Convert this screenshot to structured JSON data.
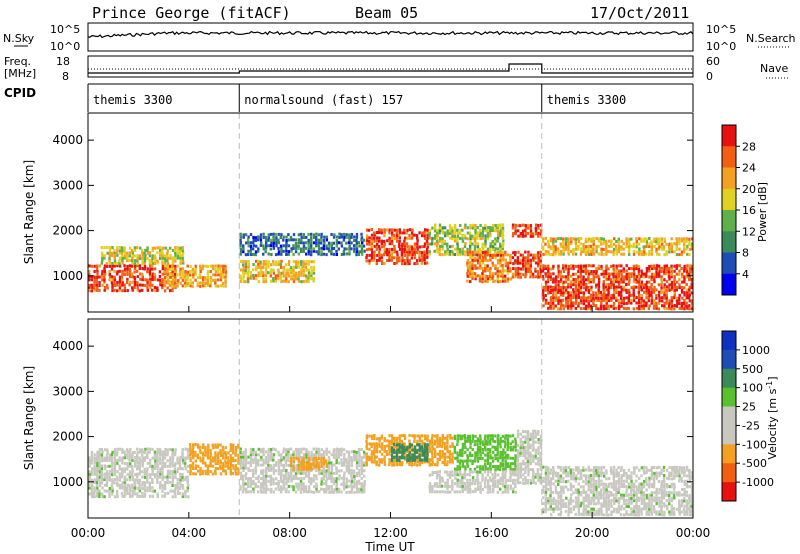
{
  "header": {
    "station": "Prince George (fitACF)",
    "beam": "Beam 05",
    "date": "17/Oct/2011"
  },
  "side_labels": {
    "nsky": "N.Sky",
    "nsearch": "N.Search",
    "freq": "Freq.",
    "mhz": "[MHz]",
    "nave": "Nave",
    "cpid": "CPID"
  },
  "noise_panel": {
    "left_ticks": [
      "10^5",
      "10^0"
    ],
    "right_ticks": [
      "10^5",
      "10^0"
    ]
  },
  "freq_panel": {
    "left_ticks": [
      "18",
      "8"
    ],
    "right_ticks": [
      "60",
      "0"
    ]
  },
  "cpid_segments": [
    {
      "label": "themis 3300",
      "start_hour": 0,
      "end_hour": 6
    },
    {
      "label": "normalsound (fast) 157",
      "start_hour": 6,
      "end_hour": 18
    },
    {
      "label": "themis 3300",
      "start_hour": 18,
      "end_hour": 24
    }
  ],
  "colors": {
    "power": [
      "#0000ee",
      "#1f4db8",
      "#3a8a5a",
      "#5fb04a",
      "#e0d020",
      "#f4a020",
      "#f06010",
      "#e81010"
    ],
    "velocity": [
      "#e81010",
      "#f06010",
      "#f4a020",
      "#c8c8c0",
      "#c8c8c0",
      "#5ac030",
      "#3a8a5a",
      "#1f4db8",
      "#1030c0"
    ],
    "velocity_gray": "#c8c8c0"
  },
  "chart_data": [
    {
      "type": "heatmap",
      "name": "power",
      "xlabel": "Time UT",
      "ylabel": "Slant Range [km]",
      "colorbar_label": "Power [dB]",
      "colorbar_ticks": [
        "28",
        "24",
        "20",
        "16",
        "12",
        "8",
        "4"
      ],
      "x_ticks": [
        "00:00",
        "04:00",
        "08:00",
        "12:00",
        "16:00",
        "20:00",
        "00:00"
      ],
      "xlim_hours": [
        0,
        24
      ],
      "y_ticks": [
        "4000",
        "3000",
        "2000",
        "1000"
      ],
      "ylim": [
        200,
        4600
      ],
      "regions": [
        {
          "t0": 0.0,
          "t1": 3.5,
          "r0": 700,
          "r1": 1300,
          "power_db": 28
        },
        {
          "t0": 0.5,
          "t1": 3.8,
          "r0": 1300,
          "r1": 1700,
          "power_db": 18
        },
        {
          "t0": 3.0,
          "t1": 5.5,
          "r0": 800,
          "r1": 1300,
          "power_db": 22
        },
        {
          "t0": 6.0,
          "t1": 9.0,
          "r0": 900,
          "r1": 1400,
          "power_db": 20
        },
        {
          "t0": 6.0,
          "t1": 11.0,
          "r0": 1500,
          "r1": 2000,
          "power_db": 8
        },
        {
          "t0": 11.0,
          "t1": 13.5,
          "r0": 1300,
          "r1": 2100,
          "power_db": 28
        },
        {
          "t0": 13.5,
          "t1": 16.5,
          "r0": 1500,
          "r1": 2200,
          "power_db": 16
        },
        {
          "t0": 15.0,
          "t1": 16.8,
          "r0": 900,
          "r1": 1600,
          "power_db": 24
        },
        {
          "t0": 16.8,
          "t1": 18.0,
          "r0": 1000,
          "r1": 1600,
          "power_db": 28
        },
        {
          "t0": 16.8,
          "t1": 18.0,
          "r0": 1900,
          "r1": 2200,
          "power_db": 28
        },
        {
          "t0": 18.0,
          "t1": 24.0,
          "r0": 300,
          "r1": 1300,
          "power_db": 28
        },
        {
          "t0": 18.0,
          "t1": 24.0,
          "r0": 1500,
          "r1": 1900,
          "power_db": 20
        }
      ]
    },
    {
      "type": "heatmap",
      "name": "velocity",
      "xlabel": "Time UT",
      "ylabel": "Slant Range [km]",
      "colorbar_label": "Velocity [m s^-1]",
      "colorbar_ticks": [
        "1000",
        "500",
        "100",
        "25",
        "-25",
        "-100",
        "-500",
        "-1000"
      ],
      "x_ticks": [
        "00:00",
        "04:00",
        "08:00",
        "12:00",
        "16:00",
        "20:00",
        "00:00"
      ],
      "xlim_hours": [
        0,
        24
      ],
      "y_ticks": [
        "4000",
        "3000",
        "2000",
        "1000"
      ],
      "ylim": [
        200,
        4600
      ],
      "regions": [
        {
          "t0": 0.0,
          "t1": 4.0,
          "r0": 700,
          "r1": 1800,
          "velocity": 0
        },
        {
          "t0": 4.0,
          "t1": 6.0,
          "r0": 1200,
          "r1": 1900,
          "velocity": -150
        },
        {
          "t0": 6.0,
          "t1": 11.0,
          "r0": 800,
          "r1": 1800,
          "velocity": 0
        },
        {
          "t0": 8.0,
          "t1": 9.5,
          "r0": 1300,
          "r1": 1600,
          "velocity": -200
        },
        {
          "t0": 11.0,
          "t1": 14.5,
          "r0": 1400,
          "r1": 2100,
          "velocity": -200
        },
        {
          "t0": 12.0,
          "t1": 13.5,
          "r0": 1500,
          "r1": 1900,
          "velocity": 300
        },
        {
          "t0": 14.5,
          "t1": 17.0,
          "r0": 1300,
          "r1": 2100,
          "velocity": 60
        },
        {
          "t0": 13.5,
          "t1": 17.0,
          "r0": 800,
          "r1": 1300,
          "velocity": 0
        },
        {
          "t0": 17.0,
          "t1": 18.0,
          "r0": 1000,
          "r1": 2200,
          "velocity": 0
        },
        {
          "t0": 18.0,
          "t1": 24.0,
          "r0": 300,
          "r1": 1400,
          "velocity": 0
        }
      ]
    }
  ]
}
